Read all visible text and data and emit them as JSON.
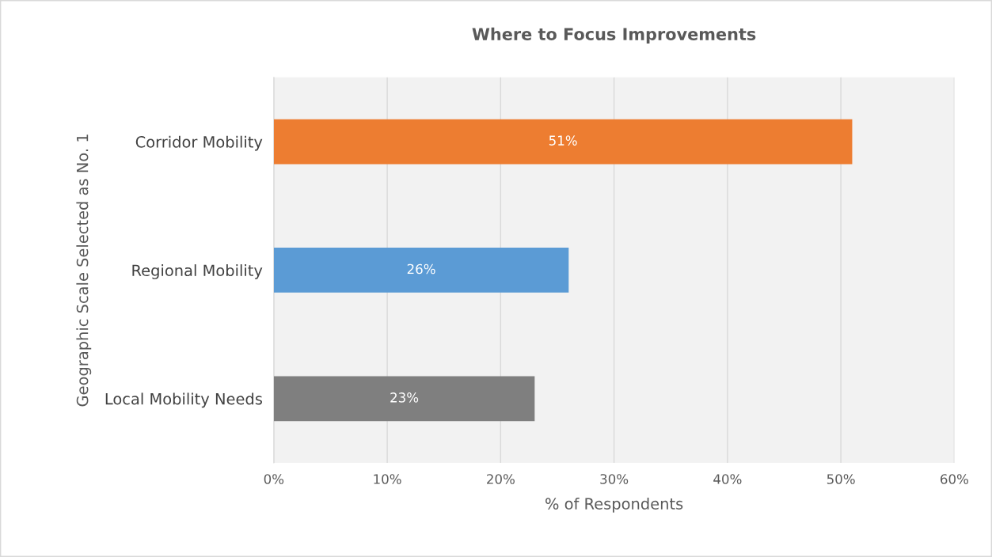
{
  "chart_data": {
    "type": "bar",
    "orientation": "horizontal",
    "title": "Where to Focus Improvements",
    "xlabel": "% of Respondents",
    "ylabel": "Geographic Scale Selected as No. 1",
    "categories": [
      "Corridor Mobility",
      "Regional Mobility",
      "Local Mobility Needs"
    ],
    "values": [
      51,
      26,
      23
    ],
    "colors": [
      "#ed7d31",
      "#5b9bd5",
      "#7f7f7f"
    ],
    "value_labels": [
      "51%",
      "26%",
      "23%"
    ],
    "xlim": [
      0,
      60
    ],
    "xticks": [
      {
        "value": 0,
        "label": "0%"
      },
      {
        "value": 10,
        "label": "10%"
      },
      {
        "value": 20,
        "label": "20%"
      },
      {
        "value": 30,
        "label": "30%"
      },
      {
        "value": 40,
        "label": "40%"
      },
      {
        "value": 50,
        "label": "50%"
      },
      {
        "value": 60,
        "label": "60%"
      }
    ],
    "grid": "x",
    "legend": false
  }
}
